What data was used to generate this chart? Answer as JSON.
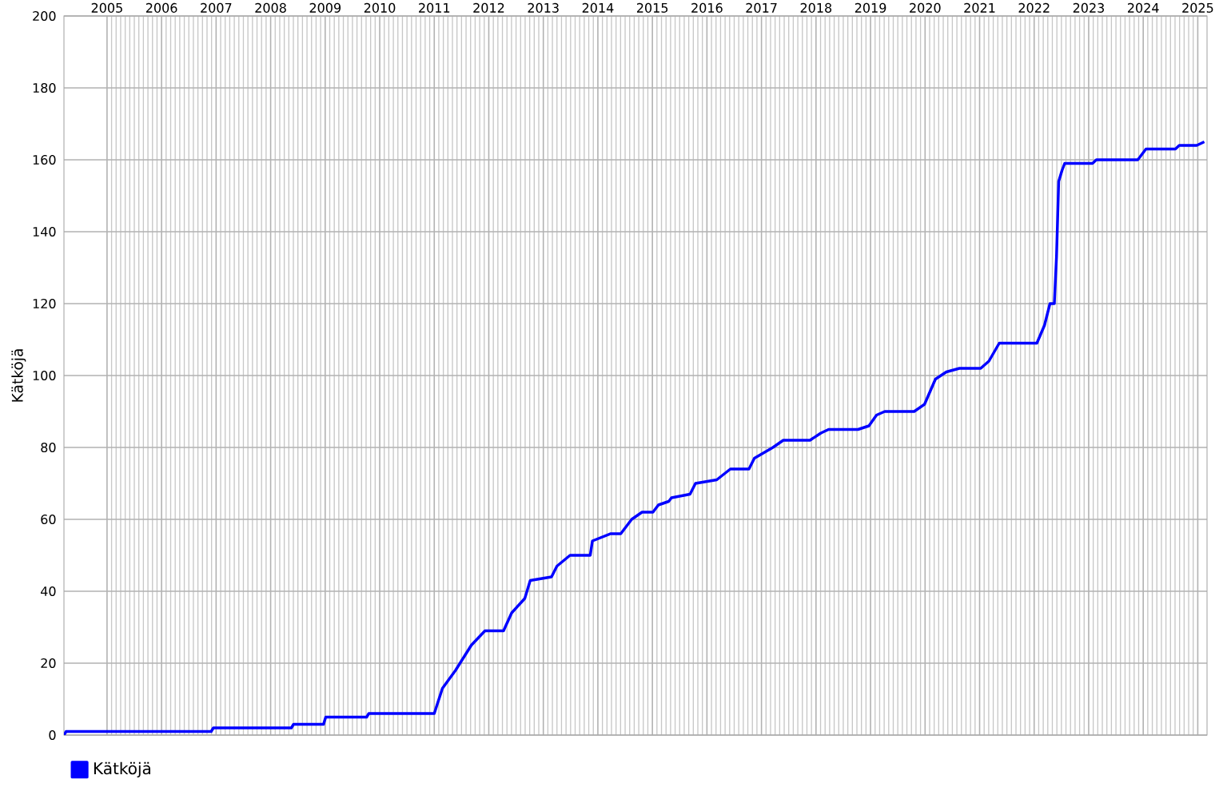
{
  "chart_data": {
    "type": "line",
    "ylabel": "Kätköjä",
    "x": [
      2004.71,
      2004.75,
      2007.41,
      2007.45,
      2008.88,
      2008.92,
      2009.47,
      2009.51,
      2010.26,
      2010.3,
      2011.5,
      2011.65,
      2011.89,
      2012.18,
      2012.43,
      2012.77,
      2012.92,
      2013.16,
      2013.26,
      2013.65,
      2013.75,
      2013.99,
      2014.36,
      2014.4,
      2014.73,
      2014.92,
      2015.12,
      2015.31,
      2015.51,
      2015.61,
      2015.8,
      2015.85,
      2016.19,
      2016.29,
      2016.68,
      2016.93,
      2017.27,
      2017.37,
      2017.71,
      2017.9,
      2018.39,
      2018.59,
      2018.73,
      2019.27,
      2019.47,
      2019.61,
      2019.76,
      2020.3,
      2020.49,
      2020.69,
      2020.89,
      2021.13,
      2021.52,
      2021.67,
      2021.86,
      2022.55,
      2022.69,
      2022.79,
      2022.87,
      2022.91,
      2022.95,
      2023.01,
      2023.06,
      2023.57,
      2023.64,
      2024.4,
      2024.55,
      2025.09,
      2025.16,
      2025.48,
      2025.62
    ],
    "series": [
      {
        "name": "Kätköjä",
        "color": "#0000ff",
        "values": [
          0,
          1,
          1,
          2,
          2,
          3,
          3,
          5,
          5,
          6,
          6,
          13,
          18,
          25,
          29,
          29,
          34,
          38,
          43,
          44,
          47,
          50,
          50,
          54,
          56,
          56,
          60,
          62,
          62,
          64,
          65,
          66,
          67,
          70,
          71,
          74,
          74,
          77,
          80,
          82,
          82,
          84,
          85,
          85,
          86,
          89,
          90,
          90,
          92,
          99,
          101,
          102,
          102,
          104,
          109,
          109,
          114,
          120,
          120,
          133,
          154,
          157,
          159,
          159,
          160,
          160,
          163,
          163,
          164,
          164,
          165
        ]
      }
    ],
    "xlim": [
      2004.71,
      2025.67
    ],
    "ylim": [
      0,
      200
    ],
    "xticks": [
      {
        "value": 2005.5,
        "label": "2005"
      },
      {
        "value": 2006.5,
        "label": "2006"
      },
      {
        "value": 2007.5,
        "label": "2007"
      },
      {
        "value": 2008.5,
        "label": "2008"
      },
      {
        "value": 2009.5,
        "label": "2009"
      },
      {
        "value": 2010.5,
        "label": "2010"
      },
      {
        "value": 2011.5,
        "label": "2011"
      },
      {
        "value": 2012.5,
        "label": "2012"
      },
      {
        "value": 2013.5,
        "label": "2013"
      },
      {
        "value": 2014.5,
        "label": "2014"
      },
      {
        "value": 2015.5,
        "label": "2015"
      },
      {
        "value": 2016.5,
        "label": "2016"
      },
      {
        "value": 2017.5,
        "label": "2017"
      },
      {
        "value": 2018.5,
        "label": "2018"
      },
      {
        "value": 2019.5,
        "label": "2019"
      },
      {
        "value": 2020.5,
        "label": "2020"
      },
      {
        "value": 2021.5,
        "label": "2021"
      },
      {
        "value": 2022.5,
        "label": "2022"
      },
      {
        "value": 2023.5,
        "label": "2023"
      },
      {
        "value": 2024.5,
        "label": "2024"
      },
      {
        "value": 2025.5,
        "label": "2025"
      }
    ],
    "yticks": [
      0,
      20,
      40,
      60,
      80,
      100,
      120,
      140,
      160,
      180,
      200
    ],
    "grid": true,
    "legend": "bottom left",
    "marker": "none",
    "line_style": "solid"
  }
}
